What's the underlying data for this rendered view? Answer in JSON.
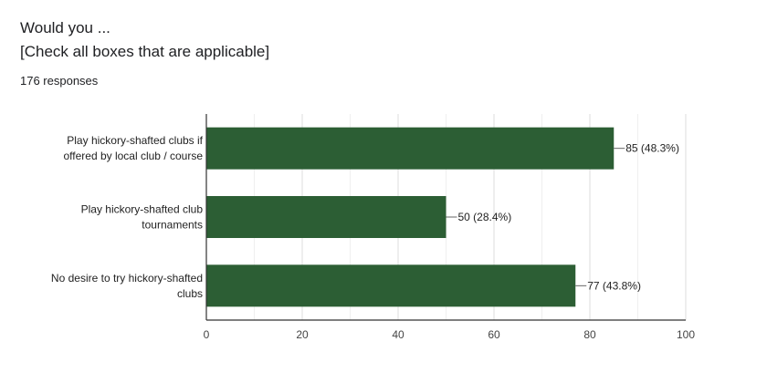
{
  "question": {
    "title_line1": "Would you ...",
    "title_line2": "[Check all boxes that are applicable]",
    "responses": "176 responses"
  },
  "colors": {
    "bar": "#2c5e34",
    "axis": "#333333",
    "grid": "#e6e6e6",
    "leader": "#666666"
  },
  "chart_data": {
    "type": "bar",
    "orientation": "horizontal",
    "categories": [
      [
        "Play hickory-shafted clubs if",
        "offered by local club / course"
      ],
      [
        "Play hickory-shafted club",
        "tournaments"
      ],
      [
        "No desire to try hickory-shafted",
        "clubs"
      ]
    ],
    "values": [
      85,
      50,
      77
    ],
    "data_labels": [
      "85 (48.3%)",
      "50 (28.4%)",
      "77 (43.8%)"
    ],
    "xlim": [
      0,
      100
    ],
    "xticks": [
      0,
      20,
      40,
      60,
      80,
      100
    ],
    "grid": true,
    "legend": "none"
  }
}
